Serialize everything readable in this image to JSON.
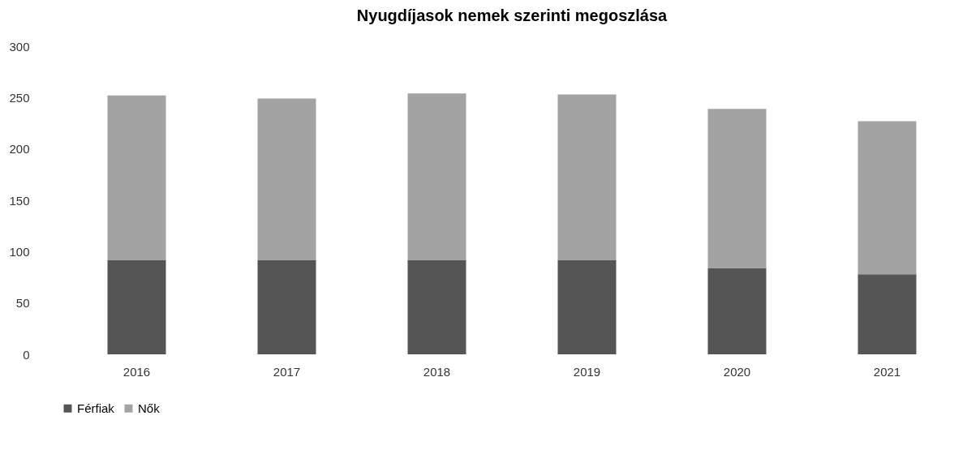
{
  "chart_data": {
    "type": "bar",
    "title": "Nyugdíjasok nemek szerinti megoszlása",
    "categories": [
      "2016",
      "2017",
      "2018",
      "2019",
      "2020",
      "2021"
    ],
    "stacked": true,
    "legend": "bottom",
    "ylim": [
      0,
      300
    ],
    "yticks": [
      0,
      50,
      100,
      150,
      200,
      250,
      300
    ],
    "series": [
      {
        "name": "Férfiak",
        "color": "#555555",
        "values": [
          92,
          92,
          92,
          92,
          84,
          78
        ]
      },
      {
        "name": "Nők",
        "color": "#a3a3a3",
        "values": [
          160,
          157,
          162,
          161,
          155,
          149
        ]
      }
    ]
  }
}
